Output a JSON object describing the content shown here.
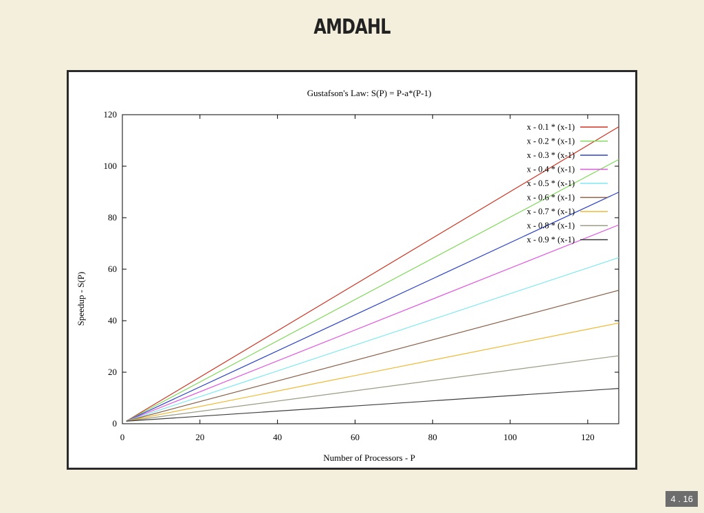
{
  "slide": {
    "title": "AMDAHL",
    "slide_number": "4 . 16"
  },
  "chart_data": {
    "type": "line",
    "title": "Gustafson's Law: S(P) = P-a*(P-1)",
    "xlabel": "Number of Processors - P",
    "ylabel": "Speedup - S(P)",
    "xlim": [
      0,
      128
    ],
    "ylim": [
      0,
      120
    ],
    "xticks": [
      0,
      20,
      40,
      60,
      80,
      100,
      120
    ],
    "yticks": [
      0,
      20,
      40,
      60,
      80,
      100,
      120
    ],
    "grid": false,
    "legend_position": "top-right",
    "x": [
      1,
      128
    ],
    "series": [
      {
        "name": "x - 0.1 * (x-1)",
        "color": "#d0301e",
        "values": [
          1,
          115.3
        ]
      },
      {
        "name": "x - 0.2 * (x-1)",
        "color": "#7ed957",
        "values": [
          1,
          102.6
        ]
      },
      {
        "name": "x - 0.3 * (x-1)",
        "color": "#2a40c8",
        "values": [
          1,
          89.9
        ]
      },
      {
        "name": "x - 0.4 * (x-1)",
        "color": "#e055e0",
        "values": [
          1,
          77.2
        ]
      },
      {
        "name": "x - 0.5 * (x-1)",
        "color": "#7fe8f2",
        "values": [
          1,
          64.5
        ]
      },
      {
        "name": "x - 0.6 * (x-1)",
        "color": "#8a6048",
        "values": [
          1,
          51.8
        ]
      },
      {
        "name": "x - 0.7 * (x-1)",
        "color": "#f0b830",
        "values": [
          1,
          39.1
        ]
      },
      {
        "name": "x - 0.8 * (x-1)",
        "color": "#9a9a84",
        "values": [
          1,
          26.4
        ]
      },
      {
        "name": "x - 0.9 * (x-1)",
        "color": "#3c3c3c",
        "values": [
          1,
          13.7
        ]
      }
    ]
  }
}
